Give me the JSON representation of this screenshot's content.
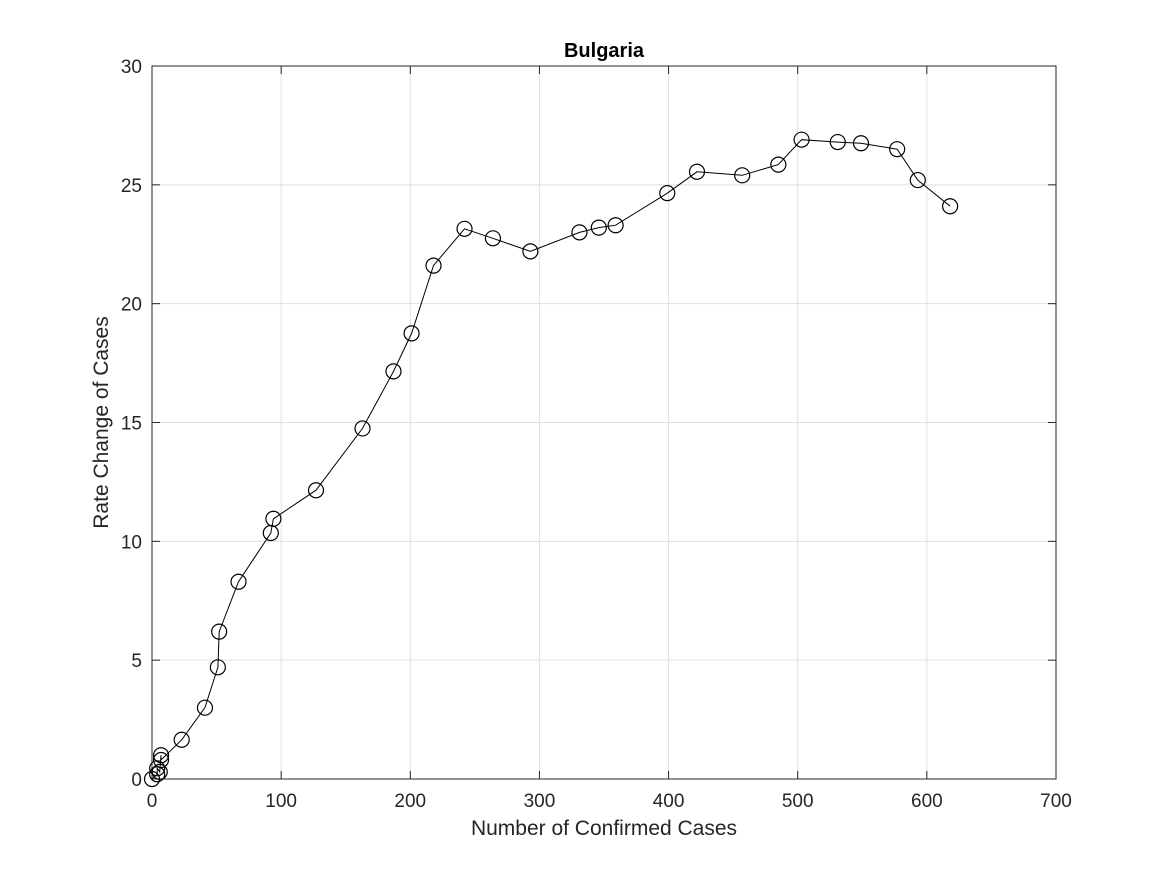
{
  "chart_data": {
    "type": "line",
    "title": "Bulgaria",
    "xlabel": "Number of Confirmed Cases",
    "ylabel": "Rate Change of Cases",
    "xlim": [
      0,
      700
    ],
    "ylim": [
      0,
      30
    ],
    "xticks": [
      0,
      100,
      200,
      300,
      400,
      500,
      600,
      700
    ],
    "yticks": [
      0,
      5,
      10,
      15,
      20,
      25,
      30
    ],
    "grid": true,
    "marker": "circle",
    "line_color": "#000000",
    "series": [
      {
        "x": [
          0,
          4,
          4,
          6,
          7,
          7,
          23,
          41,
          51,
          52,
          67,
          92,
          94,
          127,
          163,
          187,
          201,
          218,
          242,
          264,
          293,
          331,
          346,
          359,
          399,
          422,
          457,
          485,
          503,
          531,
          549,
          577,
          593,
          618
        ],
        "y": [
          0,
          0.2,
          0.45,
          0.3,
          1.0,
          0.8,
          1.65,
          3.0,
          4.7,
          6.2,
          8.3,
          10.35,
          10.95,
          12.15,
          14.75,
          17.15,
          18.75,
          21.6,
          23.15,
          22.75,
          22.2,
          23.0,
          23.2,
          23.3,
          24.65,
          25.55,
          25.4,
          25.85,
          26.9,
          26.8,
          26.75,
          26.5,
          25.2,
          24.1
        ]
      }
    ]
  }
}
